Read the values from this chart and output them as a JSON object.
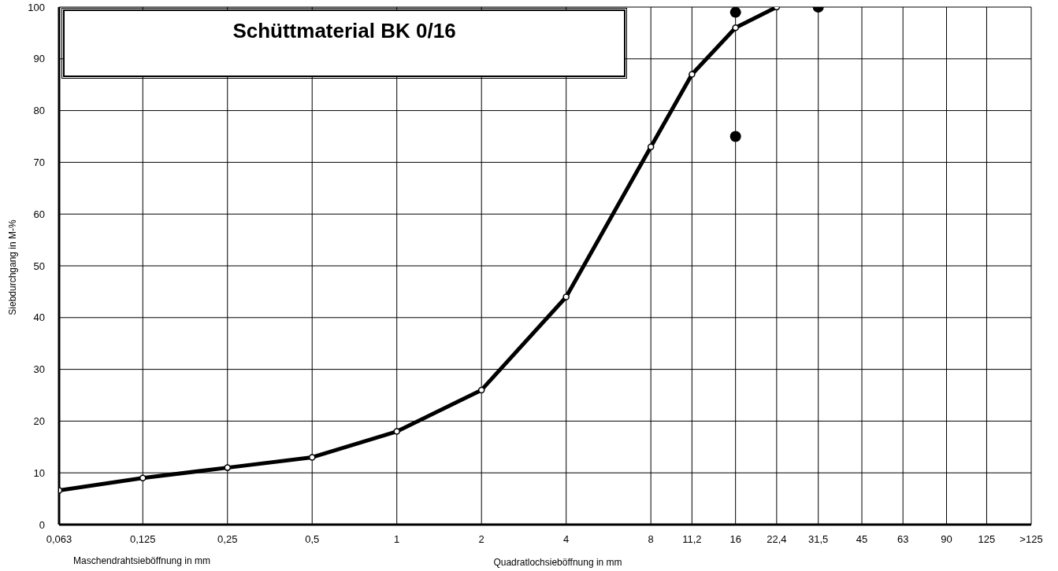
{
  "chart_data": {
    "type": "line",
    "title": "Schüttmaterial BK 0/16",
    "ylabel": "Siebdurchgang in M-%",
    "annotations": [
      "Maschendrahtsieböffnung in mm",
      "Quadratlochsieböffnung in mm"
    ],
    "series": [
      {
        "color": "#000000",
        "x": [
          0.063,
          0.125,
          0.25,
          0.5,
          1,
          2,
          4,
          8,
          11.2,
          16,
          22.4
        ],
        "values": [
          6.6,
          9,
          11,
          13,
          18,
          26,
          44,
          73,
          87,
          96,
          100
        ]
      },
      {
        "type": "scatter",
        "color": "#000000",
        "x": [
          16,
          16,
          31.5
        ],
        "values": [
          99,
          75,
          100
        ]
      }
    ],
    "log": "x",
    "xlim": [
      0.063,
      180
    ],
    "xticks": [
      {
        "value": 0.063,
        "label": "0,063"
      },
      {
        "value": 0.125,
        "label": "0,125"
      },
      {
        "value": 0.25,
        "label": "0,25"
      },
      {
        "value": 0.5,
        "label": "0,5"
      },
      1,
      2,
      4,
      8,
      {
        "value": 11.2,
        "label": "11,2"
      },
      16,
      {
        "value": 22.4,
        "label": "22,4"
      },
      {
        "value": 31.5,
        "label": "31,5"
      },
      45,
      63,
      90,
      125,
      {
        "value": 180,
        "label": ">125"
      }
    ],
    "ylim": [
      0,
      100
    ],
    "yticks": [
      0,
      10,
      20,
      30,
      40,
      50,
      60,
      70,
      80,
      90,
      100
    ],
    "grid": true,
    "marker": "circle",
    "line_style": "solid"
  }
}
